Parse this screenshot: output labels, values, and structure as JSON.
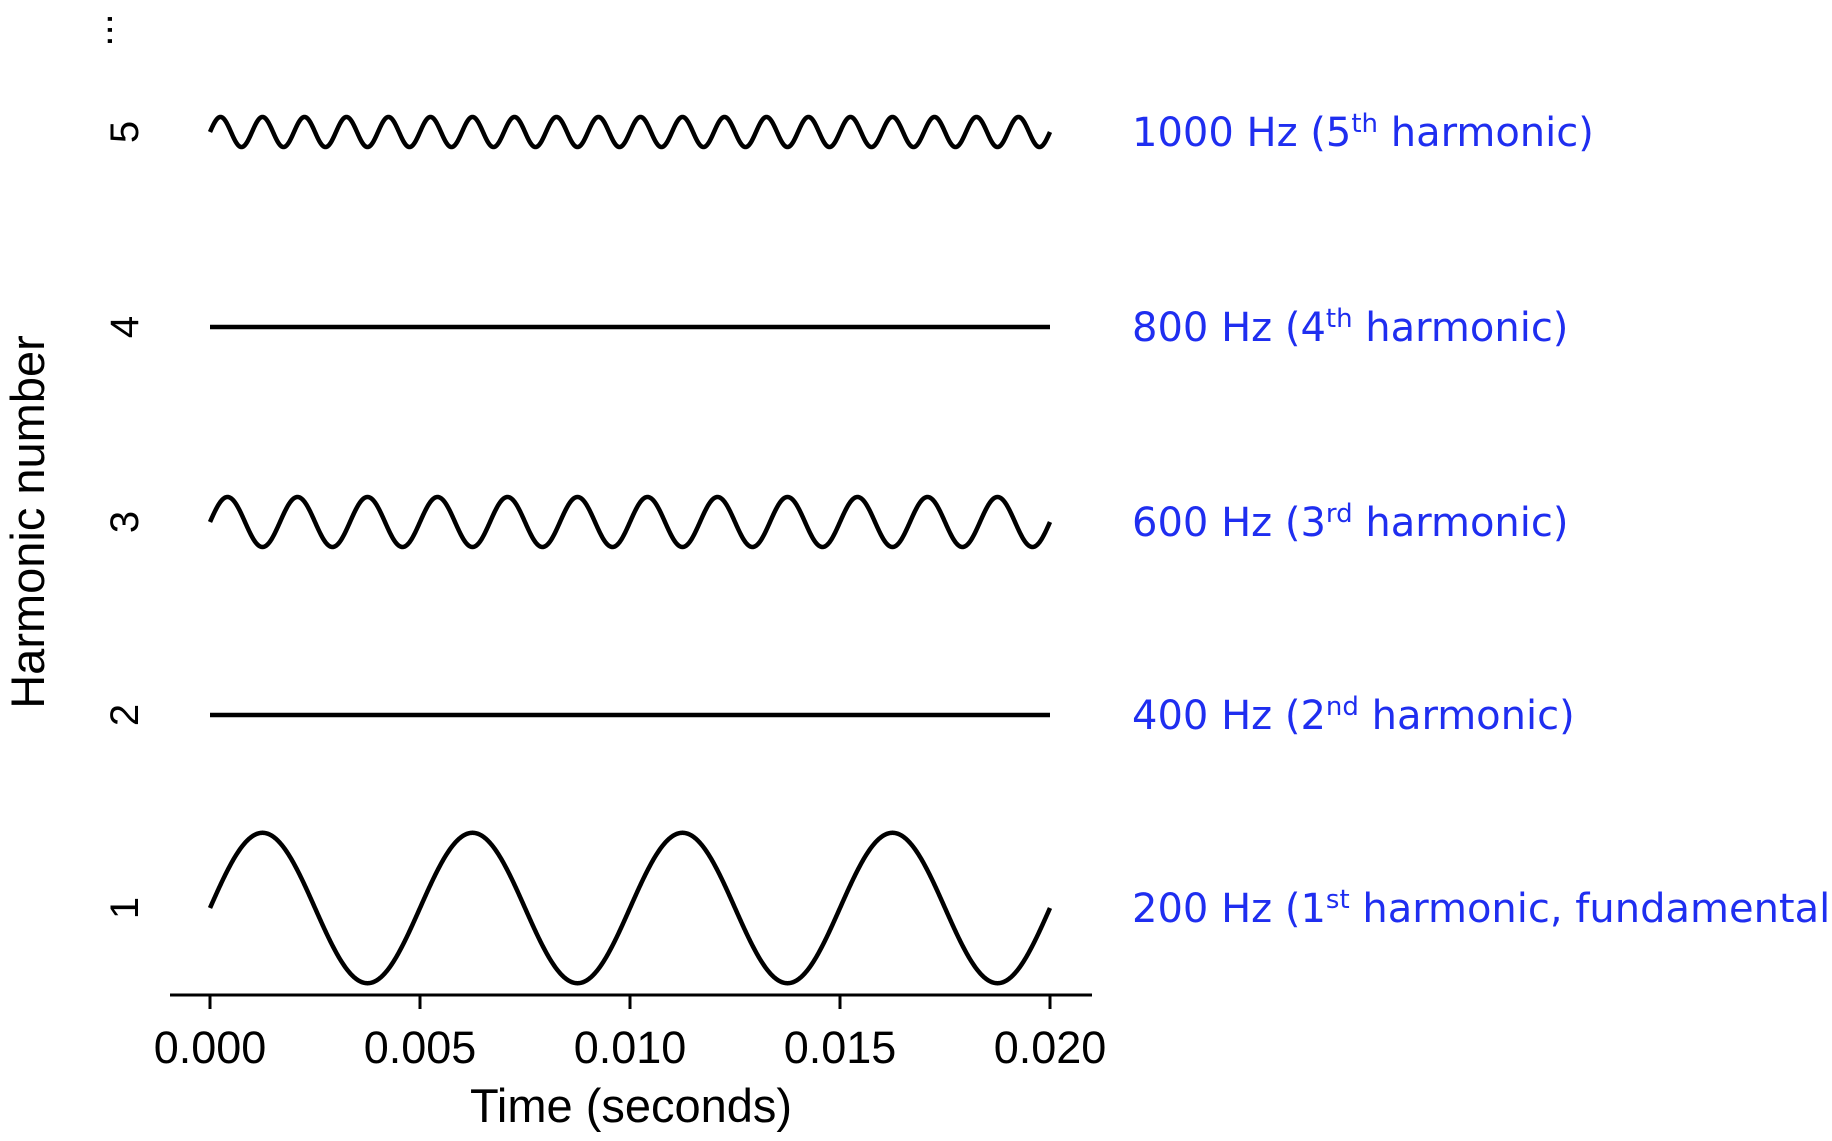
{
  "chart_data": {
    "type": "line",
    "xlabel": "Time (seconds)",
    "ylabel": "Harmonic number",
    "xlim": [
      0.0,
      0.02
    ],
    "x_ticks": [
      "0.000",
      "0.005",
      "0.010",
      "0.015",
      "0.020"
    ],
    "x_tick_values": [
      0.0,
      0.005,
      0.01,
      0.015,
      0.02
    ],
    "y_ticks": [
      "1",
      "2",
      "3",
      "4",
      "5"
    ],
    "y_continuation": "...",
    "label_color": "#1f2ef0",
    "line_color": "#000000",
    "series": [
      {
        "harmonic": 1,
        "frequency_hz": 200,
        "amplitude": 0.4,
        "label": {
          "main": "200 Hz (1",
          "sup": "st",
          "rest": " harmonic, fundamental)"
        }
      },
      {
        "harmonic": 2,
        "frequency_hz": 400,
        "amplitude": 0.0,
        "label": {
          "main": "400 Hz (2",
          "sup": "nd",
          "rest": " harmonic)"
        }
      },
      {
        "harmonic": 3,
        "frequency_hz": 600,
        "amplitude": 0.133,
        "label": {
          "main": "600 Hz (3",
          "sup": "rd",
          "rest": " harmonic)"
        }
      },
      {
        "harmonic": 4,
        "frequency_hz": 800,
        "amplitude": 0.0,
        "label": {
          "main": "800 Hz (4",
          "sup": "th",
          "rest": " harmonic)"
        }
      },
      {
        "harmonic": 5,
        "frequency_hz": 1000,
        "amplitude": 0.08,
        "label": {
          "main": "1000 Hz (5",
          "sup": "th",
          "rest": " harmonic)"
        }
      }
    ]
  }
}
